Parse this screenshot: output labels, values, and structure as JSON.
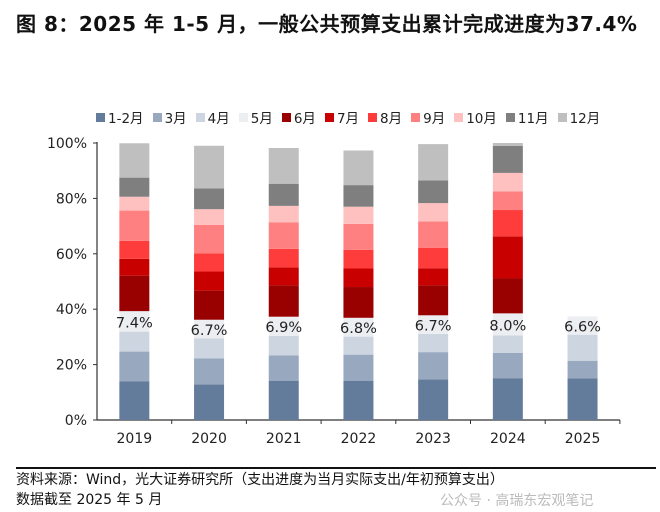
{
  "title": "图 8：2025 年 1-5 月，一般公共预算支出累计完成进度为37.4%",
  "chart_data": {
    "type": "bar",
    "stacked": true,
    "categories": [
      "2019",
      "2020",
      "2021",
      "2022",
      "2023",
      "2024",
      "2025"
    ],
    "ylim": [
      0,
      100
    ],
    "yticks": [
      "0%",
      "20%",
      "40%",
      "60%",
      "80%",
      "100%"
    ],
    "legend_position": "top",
    "grid": false,
    "series": [
      {
        "name": "1-2月",
        "color": "#647c9c",
        "values": [
          13.9,
          12.8,
          14.2,
          14.2,
          14.7,
          15.1,
          15.0
        ]
      },
      {
        "name": "3月",
        "color": "#97a8bf",
        "values": [
          10.8,
          9.4,
          9.1,
          9.4,
          9.8,
          9.1,
          6.4
        ]
      },
      {
        "name": "4月",
        "color": "#cdd5e0",
        "values": [
          7.2,
          7.3,
          7.1,
          6.5,
          6.6,
          6.3,
          9.4
        ]
      },
      {
        "name": "5月",
        "color": "#eceef2",
        "values": [
          7.4,
          6.7,
          6.9,
          6.8,
          6.7,
          8.0,
          6.6
        ]
      },
      {
        "name": "6月",
        "color": "#990000",
        "values": [
          12.8,
          10.5,
          11.3,
          11.1,
          10.8,
          12.6,
          null
        ]
      },
      {
        "name": "7月",
        "color": "#c80000",
        "values": [
          6.1,
          6.9,
          6.5,
          6.7,
          6.2,
          15.2,
          null
        ]
      },
      {
        "name": "8月",
        "color": "#ff3c3c",
        "values": [
          6.5,
          6.6,
          6.7,
          6.7,
          7.4,
          9.5,
          null
        ]
      },
      {
        "name": "9月",
        "color": "#ff8080",
        "values": [
          10.9,
          10.2,
          9.5,
          9.4,
          9.5,
          6.7,
          null
        ]
      },
      {
        "name": "10月",
        "color": "#ffc0c0",
        "values": [
          5.0,
          5.7,
          6.0,
          6.2,
          6.6,
          6.7,
          null
        ]
      },
      {
        "name": "11月",
        "color": "#7f7f7f",
        "values": [
          6.9,
          7.5,
          8.0,
          7.8,
          8.2,
          9.8,
          null
        ]
      },
      {
        "name": "12月",
        "color": "#bfbfbf",
        "values": [
          12.4,
          15.4,
          12.9,
          12.5,
          13.1,
          1.0,
          null
        ]
      }
    ],
    "data_labels": [
      "7.4%",
      "6.7%",
      "6.9%",
      "6.8%",
      "6.7%",
      "8.0%",
      "6.6%"
    ]
  },
  "footer": {
    "source": "资料来源：Wind，光大证券研究所（支出进度为当月实际支出/年初预算支出）",
    "note": "数据截至 2025 年 5 月",
    "watermark": "公众号 · 高瑞东宏观笔记"
  }
}
